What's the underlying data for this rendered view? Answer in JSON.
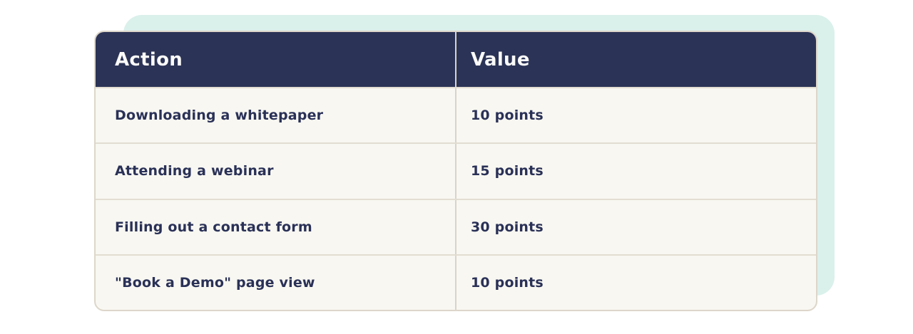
{
  "page": {
    "background_color": "#ffffff"
  },
  "accent_panel": {
    "color": "#daf0eb"
  },
  "table": {
    "header_background": "#2b3356",
    "header_text_color": "#fafaf8",
    "body_background": "#f8f7f1",
    "body_text_color": "#2a3157",
    "border_color": "#ddd6ca",
    "columns": [
      "Action",
      "Value"
    ],
    "rows": [
      {
        "action": "Downloading a whitepaper",
        "value": "10 points"
      },
      {
        "action": "Attending a webinar",
        "value": "15 points"
      },
      {
        "action": "Filling out a contact form",
        "value": "30 points"
      },
      {
        "action": "\"Book a Demo\" page view",
        "value": "10 points"
      }
    ]
  }
}
